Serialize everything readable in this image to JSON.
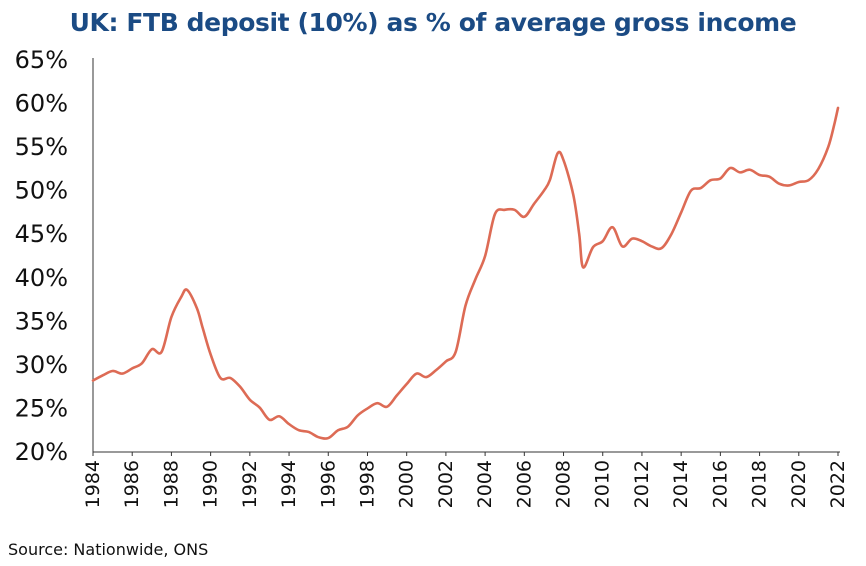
{
  "chart_data": {
    "type": "line",
    "title": "UK: FTB deposit (10%) as % of average gross income",
    "xlabel": "",
    "ylabel": "",
    "xlim": [
      1984,
      2022
    ],
    "ylim": [
      20,
      65
    ],
    "y_ticks": [
      "20%",
      "25%",
      "30%",
      "35%",
      "40%",
      "45%",
      "50%",
      "55%",
      "60%",
      "65%"
    ],
    "x_ticks": [
      "1984",
      "1986",
      "1988",
      "1990",
      "1992",
      "1994",
      "1996",
      "1998",
      "2000",
      "2002",
      "2004",
      "2006",
      "2008",
      "2010",
      "2012",
      "2014",
      "2016",
      "2018",
      "2020",
      "2022"
    ],
    "grid": false,
    "legend": "none",
    "line_color": "#dd6b55",
    "series": [
      {
        "x": [
          1984.0,
          1984.5,
          1985.0,
          1985.5,
          1986.0,
          1986.5,
          1987.0,
          1987.5,
          1988.0,
          1988.5,
          1988.8,
          1989.3,
          1989.6,
          1990.0,
          1990.5,
          1991.0,
          1991.5,
          1992.0,
          1992.5,
          1993.0,
          1993.5,
          1994.0,
          1994.5,
          1995.0,
          1995.5,
          1996.0,
          1996.5,
          1997.0,
          1997.5,
          1998.0,
          1998.5,
          1999.0,
          1999.5,
          2000.0,
          2000.5,
          2001.0,
          2001.5,
          2002.0,
          2002.5,
          2003.0,
          2003.5,
          2004.0,
          2004.5,
          2005.0,
          2005.5,
          2006.0,
          2006.5,
          2007.0,
          2007.3,
          2007.7,
          2008.0,
          2008.5,
          2008.8,
          2009.0,
          2009.5,
          2010.0,
          2010.5,
          2011.0,
          2011.5,
          2012.0,
          2012.5,
          2013.0,
          2013.5,
          2014.0,
          2014.5,
          2015.0,
          2015.5,
          2016.0,
          2016.5,
          2017.0,
          2017.5,
          2018.0,
          2018.5,
          2019.0,
          2019.5,
          2020.0,
          2020.5,
          2021.0,
          2021.5,
          2021.8,
          2022.0
        ],
        "values": [
          28.2,
          28.8,
          29.3,
          29.0,
          29.6,
          30.2,
          31.8,
          31.5,
          35.5,
          37.8,
          38.6,
          36.5,
          34.2,
          31.2,
          28.5,
          28.5,
          27.5,
          26.0,
          25.1,
          23.7,
          24.1,
          23.2,
          22.5,
          22.3,
          21.7,
          21.6,
          22.5,
          22.9,
          24.2,
          25.0,
          25.6,
          25.2,
          26.5,
          27.8,
          29.0,
          28.6,
          29.4,
          30.4,
          31.5,
          36.8,
          39.8,
          42.5,
          47.3,
          47.8,
          47.8,
          47.0,
          48.5,
          50.0,
          51.2,
          54.3,
          53.5,
          49.5,
          45.0,
          41.2,
          43.5,
          44.2,
          45.8,
          43.6,
          44.5,
          44.2,
          43.6,
          43.4,
          45.0,
          47.5,
          50.0,
          50.3,
          51.2,
          51.4,
          52.6,
          52.1,
          52.4,
          51.8,
          51.6,
          50.8,
          50.6,
          51.0,
          51.2,
          52.5,
          55.0,
          57.5,
          59.5
        ]
      }
    ]
  },
  "footer": {
    "source": "Source: Nationwide, ONS"
  }
}
